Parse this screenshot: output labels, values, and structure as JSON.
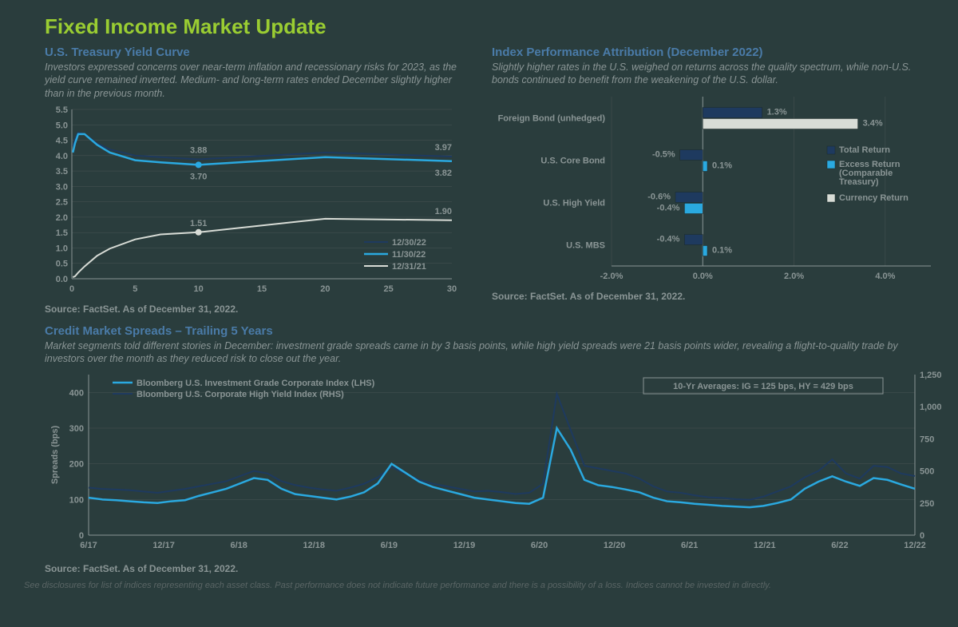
{
  "title": "Fixed Income Market Update",
  "yield_curve": {
    "title": "U.S. Treasury Yield Curve",
    "description": "Investors expressed concerns over near-term inflation and recessionary risks for 2023, as the yield curve remained inverted. Medium- and long-term rates ended December slightly higher than in the previous month.",
    "source": "Source: FactSet. As of December 31, 2022.",
    "ylim": [
      0,
      5.5
    ],
    "ytick_step": 0.5,
    "xlim": [
      0,
      30
    ],
    "xticks": [
      0,
      5,
      10,
      15,
      20,
      25,
      30
    ],
    "series": [
      {
        "name": "12/30/22",
        "color": "#1e3a5f",
        "width": 2,
        "x": [
          0.08,
          0.25,
          0.5,
          1,
          2,
          3,
          5,
          7,
          10,
          20,
          30
        ],
        "y": [
          4.3,
          4.55,
          4.75,
          4.7,
          4.4,
          4.2,
          4.0,
          3.95,
          3.88,
          4.1,
          3.97
        ],
        "labels": [
          {
            "x": 10,
            "y": 3.88,
            "text": "3.88",
            "pos": "above"
          },
          {
            "x": 30,
            "y": 3.97,
            "text": "3.97",
            "pos": "above"
          }
        ]
      },
      {
        "name": "11/30/22",
        "color": "#2aa9e0",
        "width": 2.5,
        "x": [
          0.08,
          0.25,
          0.5,
          1,
          2,
          3,
          5,
          7,
          10,
          20,
          30
        ],
        "y": [
          4.1,
          4.4,
          4.7,
          4.7,
          4.35,
          4.1,
          3.85,
          3.78,
          3.7,
          3.95,
          3.82
        ],
        "labels": [
          {
            "x": 10,
            "y": 3.7,
            "text": "3.70",
            "pos": "below",
            "marker": true
          },
          {
            "x": 30,
            "y": 3.82,
            "text": "3.82",
            "pos": "below"
          }
        ]
      },
      {
        "name": "12/31/21",
        "color": "#d8dcd6",
        "width": 2,
        "x": [
          0.08,
          0.25,
          0.5,
          1,
          2,
          3,
          5,
          7,
          10,
          20,
          30
        ],
        "y": [
          0.05,
          0.08,
          0.2,
          0.4,
          0.75,
          0.98,
          1.28,
          1.44,
          1.51,
          1.95,
          1.9
        ],
        "labels": [
          {
            "x": 10,
            "y": 1.51,
            "text": "1.51",
            "pos": "above",
            "marker": true
          },
          {
            "x": 30,
            "y": 1.9,
            "text": "1.90",
            "pos": "above"
          }
        ]
      }
    ]
  },
  "attribution": {
    "title": "Index Performance Attribution (December 2022)",
    "description": "Slightly higher rates in the U.S. weighed on returns across the quality spectrum, while non-U.S. bonds continued to benefit from the weakening of the U.S. dollar.",
    "source": "Source: FactSet. As of December 31, 2022.",
    "xlim": [
      -2.0,
      5.0
    ],
    "xticks": [
      -2.0,
      0.0,
      2.0,
      4.0
    ],
    "categories": [
      "Foreign Bond (unhedged)",
      "U.S. Core Bond",
      "U.S. High Yield",
      "U.S. MBS"
    ],
    "bars": {
      "total": {
        "name": "Total Return",
        "color": "#1e3a5f",
        "values": [
          1.3,
          -0.5,
          -0.6,
          -0.4
        ]
      },
      "excess": {
        "name": "Excess Return (Comparable Treasury)",
        "color": "#2aa9e0",
        "values": [
          null,
          0.1,
          -0.4,
          0.1
        ]
      },
      "currency": {
        "name": "Currency Return",
        "color": "#d8dcd6",
        "values": [
          3.4,
          null,
          null,
          null
        ]
      }
    },
    "value_labels": [
      {
        "cat": 0,
        "text": "1.3%",
        "x": 1.3,
        "side": "right"
      },
      {
        "cat": 0,
        "text": "3.4%",
        "x": 3.4,
        "side": "right",
        "row": 1
      },
      {
        "cat": 1,
        "text": "-0.5%",
        "x": -0.5,
        "side": "left"
      },
      {
        "cat": 1,
        "text": "0.1%",
        "x": 0.1,
        "side": "right",
        "row": 1
      },
      {
        "cat": 2,
        "text": "-0.6%",
        "x": -0.6,
        "side": "left"
      },
      {
        "cat": 2,
        "text": "-0.4%",
        "x": -0.4,
        "side": "left",
        "row": 1
      },
      {
        "cat": 3,
        "text": "-0.4%",
        "x": -0.4,
        "side": "left"
      },
      {
        "cat": 3,
        "text": "0.1%",
        "x": 0.1,
        "side": "right",
        "row": 1
      }
    ]
  },
  "spreads": {
    "title": "Credit Market Spreads – Trailing 5 Years",
    "description": "Market segments told different stories in December: investment grade spreads came in by 3 basis points, while high yield spreads were 21 basis points wider, revealing a flight-to-quality trade by investors over the month as they reduced risk to close out the year.",
    "source": "Source: FactSet. As of December 31, 2022.",
    "ylabel": "Spreads (bps)",
    "left_ylim": [
      0,
      450
    ],
    "left_yticks": [
      0,
      100,
      200,
      300,
      400
    ],
    "right_ylim": [
      0,
      1250
    ],
    "right_yticks": [
      0,
      250,
      500,
      750,
      1000,
      1250
    ],
    "xticks": [
      "6/17",
      "12/17",
      "6/18",
      "12/18",
      "6/19",
      "12/19",
      "6/20",
      "12/20",
      "6/21",
      "12/21",
      "6/22",
      "12/22"
    ],
    "legend_ig": "Bloomberg U.S. Investment Grade Corporate Index (LHS)",
    "legend_hy": "Bloomberg U.S. Corporate High Yield Index (RHS)",
    "avg_box": "10-Yr Averages: IG = 125 bps, HY = 429 bps",
    "ig": {
      "color": "#2aa9e0",
      "width": 2.5,
      "y": [
        105,
        100,
        98,
        95,
        92,
        90,
        95,
        98,
        110,
        120,
        130,
        145,
        160,
        155,
        130,
        115,
        110,
        105,
        100,
        108,
        120,
        145,
        200,
        175,
        150,
        135,
        125,
        115,
        105,
        100,
        95,
        90,
        88,
        105,
        300,
        240,
        155,
        140,
        135,
        128,
        120,
        105,
        95,
        92,
        88,
        85,
        82,
        80,
        78,
        82,
        90,
        100,
        130,
        150,
        165,
        150,
        138,
        160,
        155,
        142,
        130
      ]
    },
    "hy": {
      "color": "#1e3a5f",
      "width": 2,
      "y": [
        370,
        360,
        355,
        350,
        340,
        330,
        345,
        360,
        380,
        400,
        420,
        460,
        500,
        480,
        420,
        390,
        370,
        355,
        345,
        370,
        400,
        450,
        530,
        480,
        430,
        400,
        380,
        360,
        340,
        345,
        335,
        320,
        330,
        400,
        1100,
        820,
        540,
        520,
        500,
        480,
        440,
        380,
        340,
        330,
        310,
        295,
        290,
        280,
        275,
        300,
        340,
        380,
        450,
        500,
        590,
        480,
        440,
        540,
        530,
        480,
        460
      ]
    }
  },
  "disclaimer": "See disclosures for list of indices representing each asset class. Past performance does not indicate future performance and there is a possibility of a loss. Indices cannot be invested in directly."
}
